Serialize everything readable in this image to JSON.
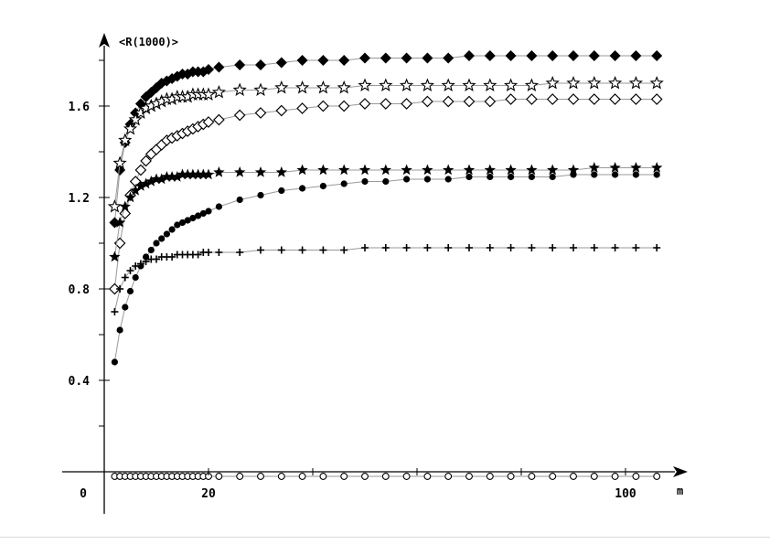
{
  "chart_data": {
    "type": "line",
    "title": "",
    "xlabel": "m",
    "ylabel": "<R(1000)>",
    "xlim": [
      -5,
      107
    ],
    "ylim": [
      -0.05,
      1.9
    ],
    "x_ticks": [
      {
        "value": 0,
        "label": "0"
      },
      {
        "value": 20,
        "label": "20"
      },
      {
        "value": 100,
        "label": "100"
      }
    ],
    "x_minor_ticks": [
      20,
      40,
      60,
      80,
      100
    ],
    "y_ticks": [
      {
        "value": 0.4,
        "label": "0.4"
      },
      {
        "value": 0.8,
        "label": "0.8"
      },
      {
        "value": 1.2,
        "label": "1.2"
      },
      {
        "value": 1.6,
        "label": "1.6"
      }
    ],
    "y_minor_ticks": [
      0.2,
      0.6,
      1.0,
      1.4,
      1.8
    ],
    "grid": false,
    "line_color": "#999999",
    "marker_color": "#000000",
    "series": [
      {
        "marker": "diamond-filled",
        "x": [
          2,
          3,
          4,
          5,
          6,
          7,
          8,
          9,
          10,
          11,
          12,
          13,
          14,
          15,
          16,
          17,
          18,
          19,
          20,
          22,
          26,
          30,
          34,
          38,
          42,
          46,
          50,
          54,
          58,
          62,
          66,
          70,
          74,
          78,
          82,
          86,
          90,
          94,
          98,
          102,
          106
        ],
        "y": [
          1.09,
          1.32,
          1.44,
          1.52,
          1.57,
          1.61,
          1.64,
          1.66,
          1.68,
          1.7,
          1.71,
          1.72,
          1.73,
          1.74,
          1.74,
          1.75,
          1.75,
          1.75,
          1.76,
          1.77,
          1.78,
          1.78,
          1.79,
          1.8,
          1.8,
          1.8,
          1.81,
          1.81,
          1.81,
          1.81,
          1.81,
          1.82,
          1.82,
          1.82,
          1.82,
          1.82,
          1.82,
          1.82,
          1.82,
          1.82,
          1.82
        ]
      },
      {
        "marker": "star-open",
        "x": [
          2,
          3,
          4,
          5,
          6,
          7,
          8,
          9,
          10,
          11,
          12,
          13,
          14,
          15,
          16,
          17,
          18,
          19,
          20,
          22,
          26,
          30,
          34,
          38,
          42,
          46,
          50,
          54,
          58,
          62,
          66,
          70,
          74,
          78,
          82,
          86,
          90,
          94,
          98,
          102,
          106
        ],
        "y": [
          1.16,
          1.35,
          1.45,
          1.5,
          1.54,
          1.57,
          1.59,
          1.6,
          1.61,
          1.62,
          1.63,
          1.63,
          1.64,
          1.64,
          1.64,
          1.65,
          1.65,
          1.65,
          1.65,
          1.66,
          1.67,
          1.67,
          1.68,
          1.68,
          1.68,
          1.68,
          1.69,
          1.69,
          1.69,
          1.69,
          1.69,
          1.69,
          1.69,
          1.69,
          1.69,
          1.7,
          1.7,
          1.7,
          1.7,
          1.7,
          1.7
        ]
      },
      {
        "marker": "diamond-open",
        "x": [
          2,
          3,
          4,
          5,
          6,
          7,
          8,
          9,
          10,
          11,
          12,
          13,
          14,
          15,
          16,
          17,
          18,
          19,
          20,
          22,
          26,
          30,
          34,
          38,
          42,
          46,
          50,
          54,
          58,
          62,
          66,
          70,
          74,
          78,
          82,
          86,
          90,
          94,
          98,
          102,
          106
        ],
        "y": [
          0.8,
          1.0,
          1.13,
          1.21,
          1.27,
          1.32,
          1.36,
          1.39,
          1.41,
          1.43,
          1.45,
          1.46,
          1.47,
          1.48,
          1.49,
          1.5,
          1.51,
          1.52,
          1.53,
          1.54,
          1.56,
          1.57,
          1.58,
          1.59,
          1.6,
          1.6,
          1.61,
          1.61,
          1.61,
          1.62,
          1.62,
          1.62,
          1.62,
          1.63,
          1.63,
          1.63,
          1.63,
          1.63,
          1.63,
          1.63,
          1.63
        ]
      },
      {
        "marker": "star-filled",
        "x": [
          2,
          3,
          4,
          5,
          6,
          7,
          8,
          9,
          10,
          11,
          12,
          13,
          14,
          15,
          16,
          17,
          18,
          19,
          20,
          22,
          26,
          30,
          34,
          38,
          42,
          46,
          50,
          54,
          58,
          62,
          66,
          70,
          74,
          78,
          82,
          86,
          90,
          94,
          98,
          102,
          106
        ],
        "y": [
          0.94,
          1.09,
          1.16,
          1.2,
          1.23,
          1.25,
          1.26,
          1.27,
          1.28,
          1.28,
          1.29,
          1.29,
          1.29,
          1.3,
          1.3,
          1.3,
          1.3,
          1.3,
          1.3,
          1.31,
          1.31,
          1.31,
          1.31,
          1.32,
          1.32,
          1.32,
          1.32,
          1.32,
          1.32,
          1.32,
          1.32,
          1.32,
          1.32,
          1.32,
          1.32,
          1.32,
          1.32,
          1.33,
          1.33,
          1.33,
          1.33
        ]
      },
      {
        "marker": "circle-filled",
        "x": [
          2,
          3,
          4,
          5,
          6,
          7,
          8,
          9,
          10,
          11,
          12,
          13,
          14,
          15,
          16,
          17,
          18,
          19,
          20,
          22,
          26,
          30,
          34,
          38,
          42,
          46,
          50,
          54,
          58,
          62,
          66,
          70,
          74,
          78,
          82,
          86,
          90,
          94,
          98,
          102,
          106
        ],
        "y": [
          0.48,
          0.62,
          0.72,
          0.79,
          0.85,
          0.9,
          0.94,
          0.97,
          1.0,
          1.02,
          1.04,
          1.06,
          1.08,
          1.09,
          1.1,
          1.11,
          1.12,
          1.13,
          1.14,
          1.16,
          1.19,
          1.21,
          1.23,
          1.24,
          1.25,
          1.26,
          1.27,
          1.27,
          1.28,
          1.28,
          1.28,
          1.29,
          1.29,
          1.29,
          1.29,
          1.29,
          1.3,
          1.3,
          1.3,
          1.3,
          1.3
        ]
      },
      {
        "marker": "plus",
        "x": [
          2,
          3,
          4,
          5,
          6,
          7,
          8,
          9,
          10,
          11,
          12,
          13,
          14,
          15,
          16,
          17,
          18,
          19,
          20,
          22,
          26,
          30,
          34,
          38,
          42,
          46,
          50,
          54,
          58,
          62,
          66,
          70,
          74,
          78,
          82,
          86,
          90,
          94,
          98,
          102,
          106
        ],
        "y": [
          0.7,
          0.8,
          0.85,
          0.88,
          0.9,
          0.91,
          0.92,
          0.93,
          0.93,
          0.94,
          0.94,
          0.94,
          0.95,
          0.95,
          0.95,
          0.95,
          0.95,
          0.96,
          0.96,
          0.96,
          0.96,
          0.97,
          0.97,
          0.97,
          0.97,
          0.97,
          0.98,
          0.98,
          0.98,
          0.98,
          0.98,
          0.98,
          0.98,
          0.98,
          0.98,
          0.98,
          0.98,
          0.98,
          0.98,
          0.98,
          0.98
        ]
      },
      {
        "marker": "circle-open",
        "x": [
          2,
          3,
          4,
          5,
          6,
          7,
          8,
          9,
          10,
          11,
          12,
          13,
          14,
          15,
          16,
          17,
          18,
          19,
          20,
          22,
          26,
          30,
          34,
          38,
          42,
          46,
          50,
          54,
          58,
          62,
          66,
          70,
          74,
          78,
          82,
          86,
          90,
          94,
          98,
          102,
          106
        ],
        "y": [
          -0.02,
          -0.02,
          -0.02,
          -0.02,
          -0.02,
          -0.02,
          -0.02,
          -0.02,
          -0.02,
          -0.02,
          -0.02,
          -0.02,
          -0.02,
          -0.02,
          -0.02,
          -0.02,
          -0.02,
          -0.02,
          -0.02,
          -0.02,
          -0.02,
          -0.02,
          -0.02,
          -0.02,
          -0.02,
          -0.02,
          -0.02,
          -0.02,
          -0.02,
          -0.02,
          -0.02,
          -0.02,
          -0.02,
          -0.02,
          -0.02,
          -0.02,
          -0.02,
          -0.02,
          -0.02,
          -0.02,
          -0.02
        ]
      }
    ]
  }
}
